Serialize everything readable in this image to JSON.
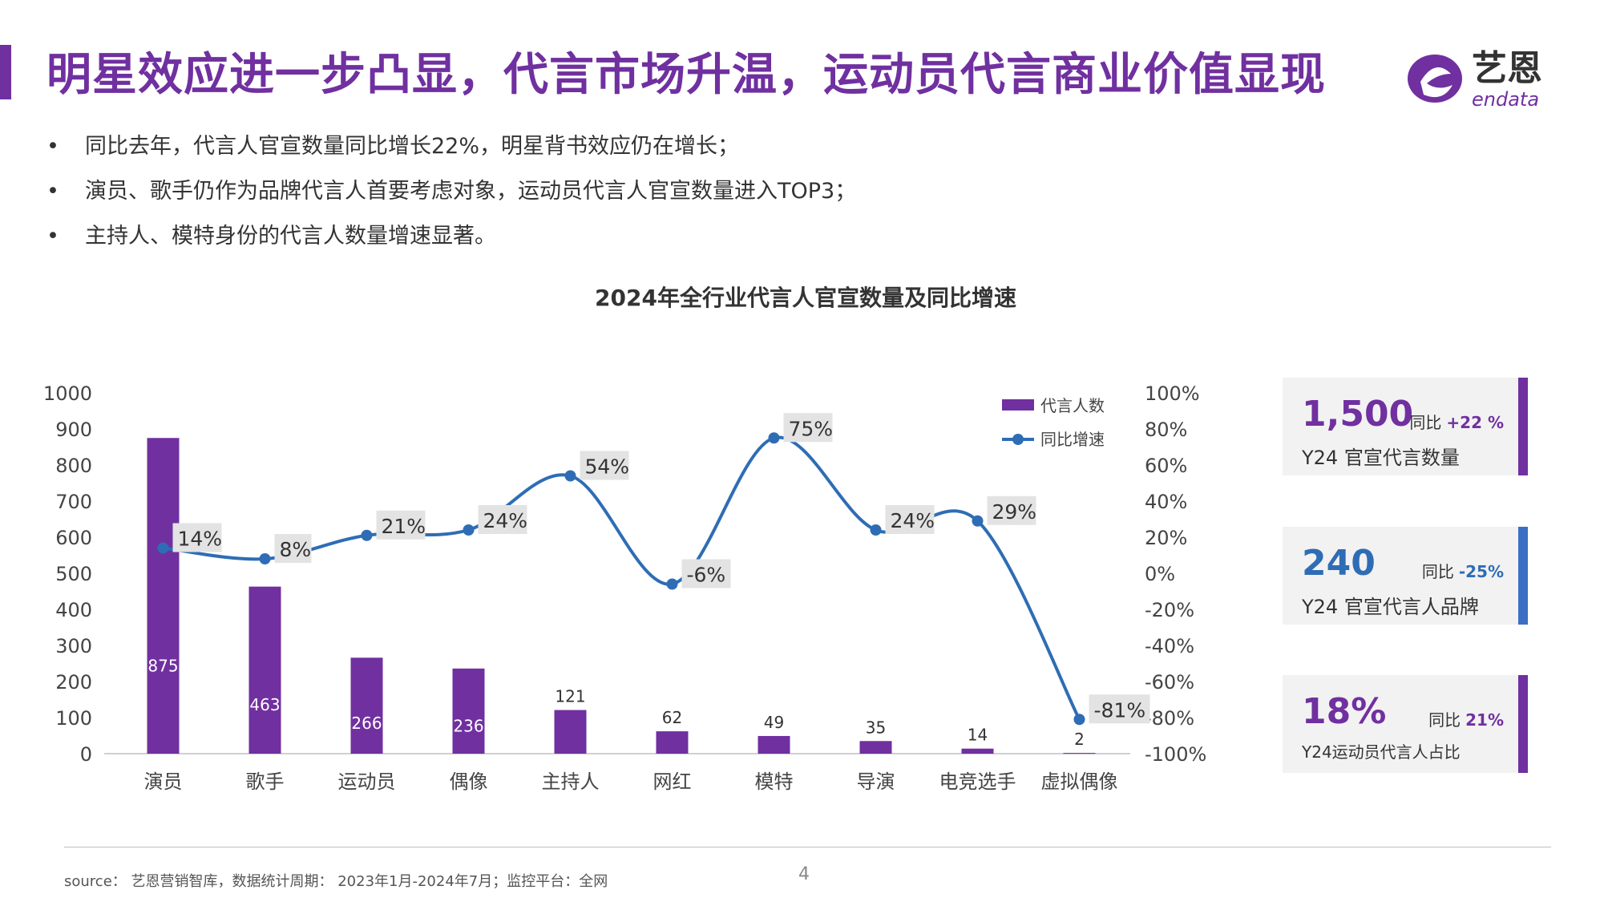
{
  "page": {
    "title": "明星效应进一步凸显，代言市场升温，运动员代言商业价值显现",
    "logo": {
      "text": "艺恩",
      "subtext": "endata",
      "icon": "endata-logo-icon",
      "color": "#7030a0"
    },
    "bullets": [
      "同比去年，代言人官宣数量同比增长22%，明星背书效应仍在增长；",
      "演员、歌手仍作为品牌代言人首要考虑对象，运动员代言人官宣数量进入TOP3；",
      "主持人、模特身份的代言人数量增速显著。"
    ],
    "bullet_symbol": "•",
    "source": "source： 艺恩营销智库，数据统计周期： 2023年1月-2024年7月；监控平台：全网",
    "page_number": "4"
  },
  "kpis": [
    {
      "value": "1,500",
      "yoy_label": "同比",
      "yoy_value": "+22 %",
      "label": "Y24 官宣代言数量",
      "color": "#7030a0"
    },
    {
      "value": "240",
      "yoy_label": "同比",
      "yoy_value": "-25%",
      "label": "Y24 官宣代言人品牌",
      "color": "#3a6fc4"
    },
    {
      "value": "18%",
      "yoy_label": "同比",
      "yoy_value": "21%",
      "label": "Y24运动员代言人占比",
      "color": "#7030a0"
    }
  ],
  "chart_data": {
    "type": "bar",
    "title": "2024年全行业代言人官宣数量及同比增速",
    "categories": [
      "演员",
      "歌手",
      "运动员",
      "偶像",
      "主持人",
      "网红",
      "模特",
      "导演",
      "电竞选手",
      "虚拟偶像"
    ],
    "series": [
      {
        "name": "代言人数",
        "type": "bar",
        "axis": "left",
        "color": "#7030a0",
        "values": [
          875,
          463,
          266,
          236,
          121,
          62,
          49,
          35,
          14,
          2
        ]
      },
      {
        "name": "同比增速",
        "type": "line",
        "axis": "right",
        "color": "#2e6db5",
        "values": [
          14,
          8,
          21,
          24,
          54,
          -6,
          75,
          24,
          29,
          -81
        ]
      }
    ],
    "bar_labels": [
      "875",
      "463",
      "266",
      "236",
      "121",
      "62",
      "49",
      "35",
      "14",
      "2"
    ],
    "line_labels": [
      "14%",
      "8%",
      "21%",
      "24%",
      "54%",
      "-6%",
      "75%",
      "24%",
      "29%",
      "-81%"
    ],
    "y_left": {
      "min": 0,
      "max": 1000,
      "step": 100,
      "ticks": [
        "0",
        "100",
        "200",
        "300",
        "400",
        "500",
        "600",
        "700",
        "800",
        "900",
        "1000"
      ]
    },
    "y_right": {
      "min": -100,
      "max": 100,
      "step": 20,
      "ticks": [
        "-100%",
        "-80%",
        "-60%",
        "-40%",
        "-20%",
        "0%",
        "20%",
        "40%",
        "60%",
        "80%",
        "100%"
      ]
    },
    "legend_position": "top-right",
    "grid": false
  }
}
